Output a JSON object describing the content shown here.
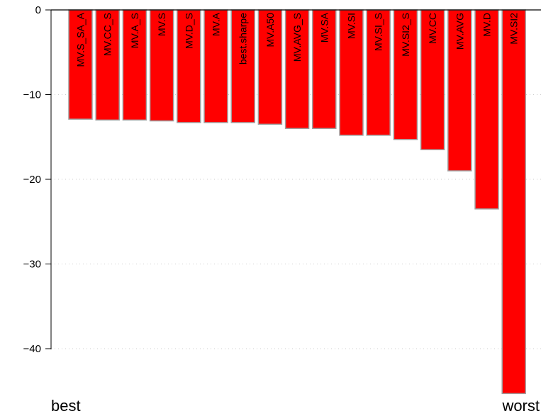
{
  "chart_data": {
    "type": "bar",
    "categories": [
      "MV.S_SA_A",
      "MV.CC_S",
      "MV.A_S",
      "MV.S",
      "MV.D_S",
      "MV.A",
      "best.sharpe",
      "MV.A50",
      "MV.AVG_S",
      "MV.SA",
      "MV.SI",
      "MV.SI_S",
      "MV.SI2_S",
      "MV.CC",
      "MV.AVG",
      "MV.D",
      "MV.SI2"
    ],
    "values": [
      -12.9,
      -13.0,
      -13.0,
      -13.1,
      -13.3,
      -13.3,
      -13.3,
      -13.5,
      -14.0,
      -14.0,
      -14.8,
      -14.8,
      -15.3,
      -16.5,
      -19.0,
      -23.5,
      -45.3
    ],
    "ylim": [
      -45.3,
      0
    ],
    "yticks": [
      0,
      -10,
      -20,
      -30,
      -40
    ],
    "ytick_labels": [
      "0",
      "−10",
      "−20",
      "−30",
      "−40"
    ],
    "grid": true,
    "bar_color": "#ff0000",
    "bar_border_color": "#a0a0a0",
    "left_end_label": "best",
    "right_end_label": "worst"
  }
}
